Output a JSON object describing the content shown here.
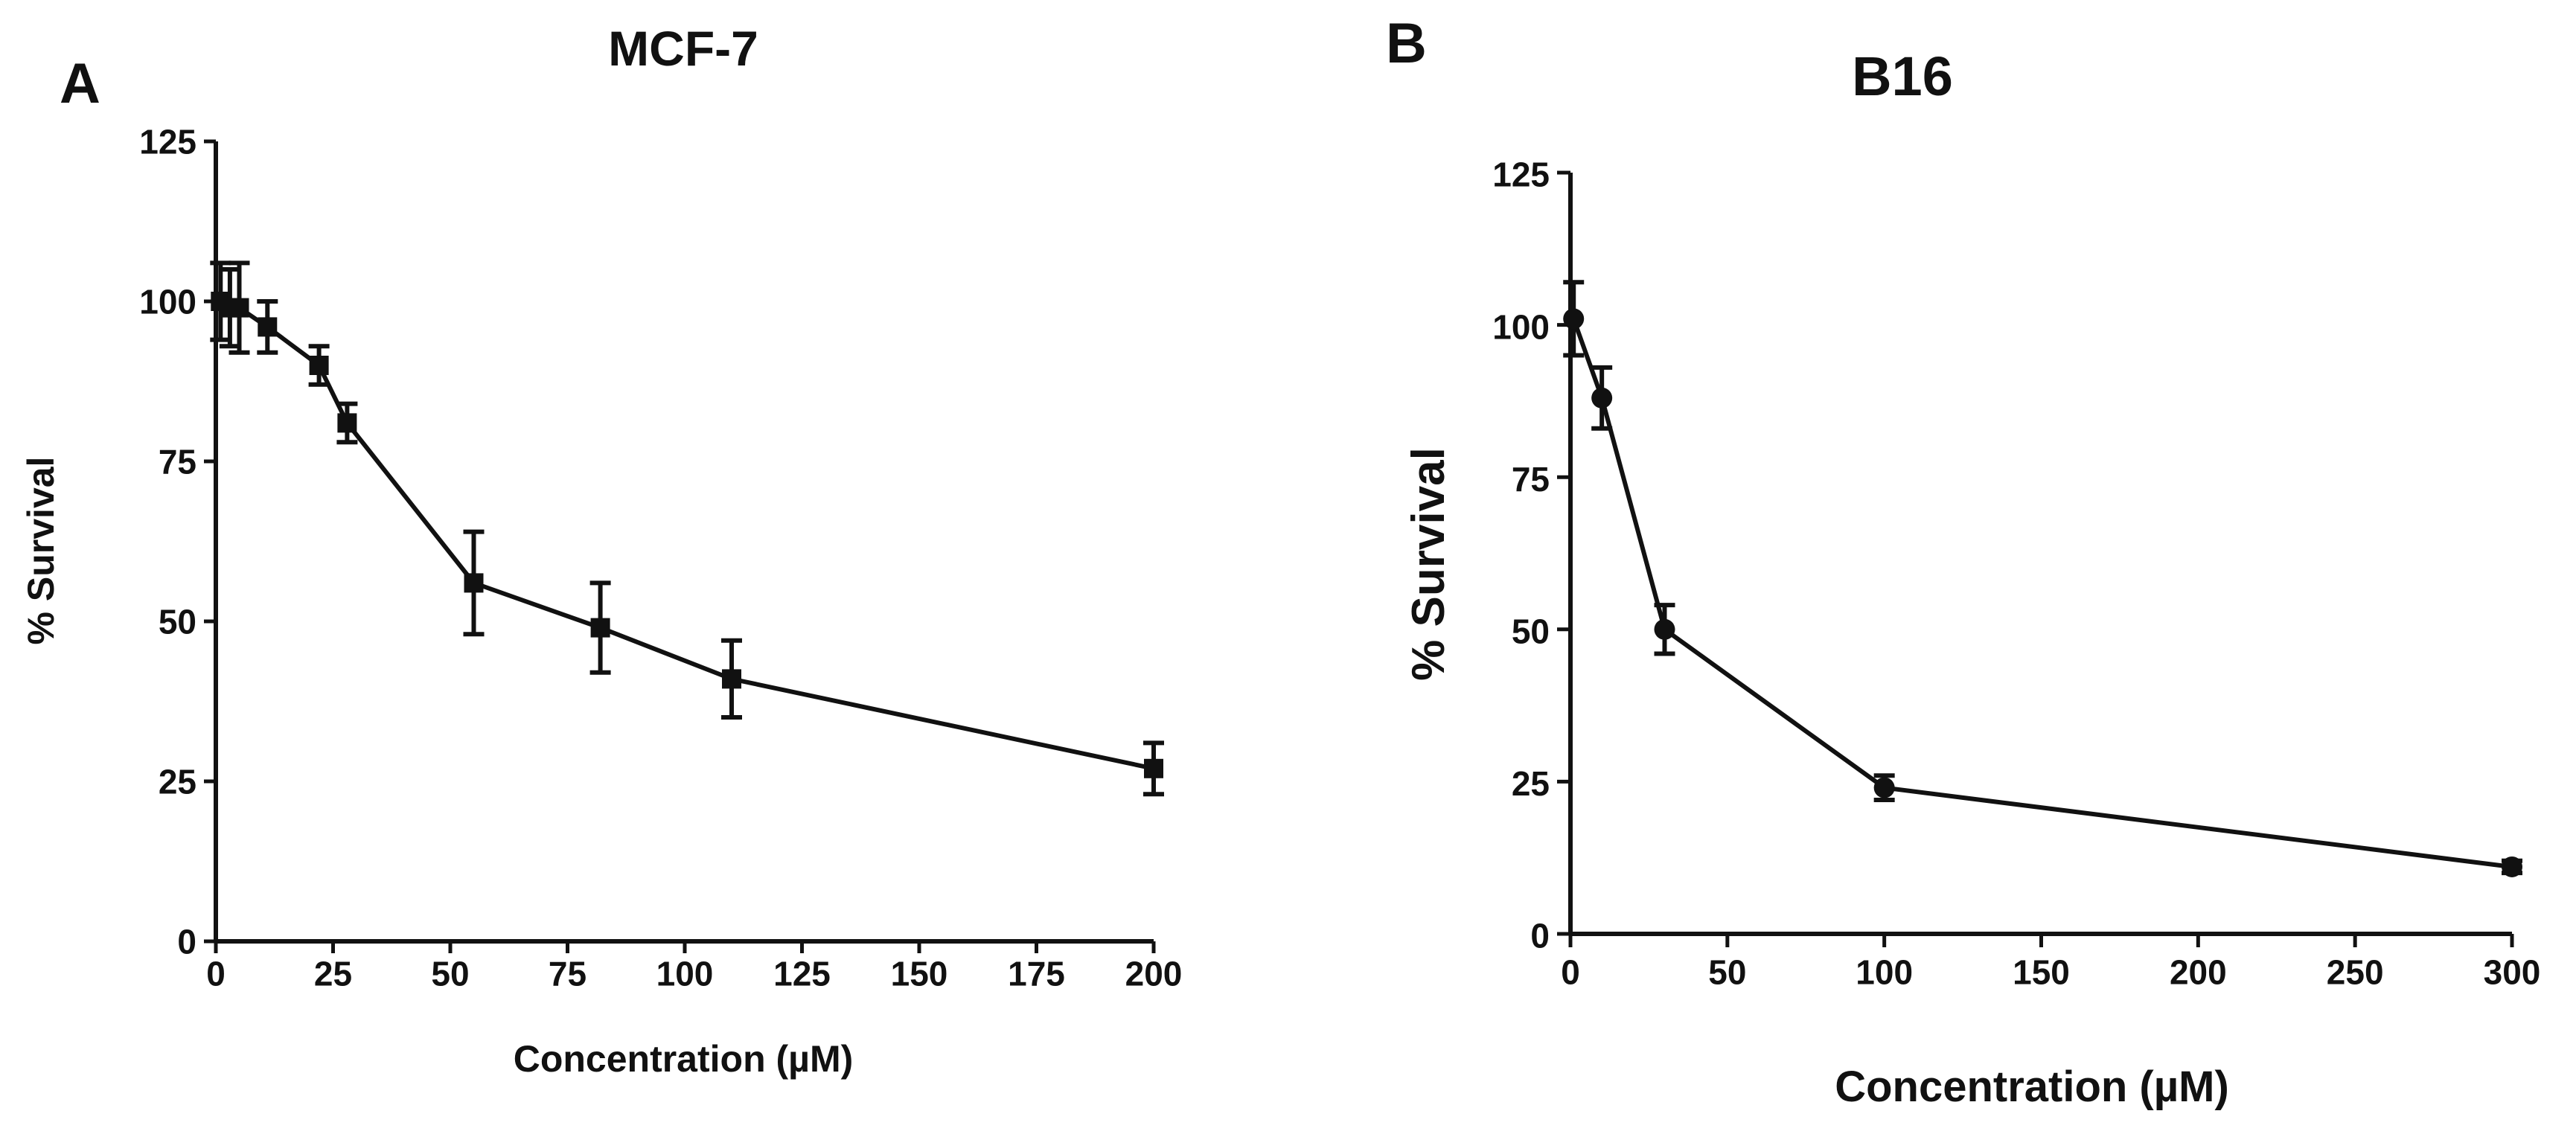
{
  "chart_data": [
    {
      "panel": "A",
      "type": "line",
      "title": "MCF-7",
      "xlabel": "Concentration (µM)",
      "ylabel": "% Survival",
      "xlim": [
        0,
        200
      ],
      "ylim": [
        0,
        125
      ],
      "xticks": [
        0,
        25,
        50,
        75,
        100,
        125,
        150,
        175,
        200
      ],
      "yticks": [
        0,
        25,
        50,
        75,
        100,
        125
      ],
      "marker": "square",
      "series": [
        {
          "name": "MCF-7",
          "x": [
            1,
            3,
            5,
            11,
            22,
            28,
            55,
            82,
            110,
            200
          ],
          "y": [
            100,
            99,
            99,
            96,
            90,
            81,
            56,
            49,
            41,
            27
          ],
          "err": [
            6,
            6,
            7,
            4,
            3,
            3,
            8,
            7,
            6,
            4
          ]
        }
      ],
      "grid": false
    },
    {
      "panel": "B",
      "type": "line",
      "title": "B16",
      "xlabel": "Concentration (µM)",
      "ylabel": "% Survival",
      "xlim": [
        0,
        300
      ],
      "ylim": [
        0,
        125
      ],
      "xticks": [
        0,
        50,
        100,
        150,
        200,
        250,
        300
      ],
      "yticks": [
        0,
        25,
        50,
        75,
        100,
        125
      ],
      "marker": "circle",
      "series": [
        {
          "name": "B16",
          "x": [
            1,
            10,
            30,
            100,
            300
          ],
          "y": [
            101,
            88,
            50,
            24,
            11
          ],
          "err": [
            6,
            5,
            4,
            2,
            1
          ]
        }
      ],
      "grid": false
    }
  ]
}
